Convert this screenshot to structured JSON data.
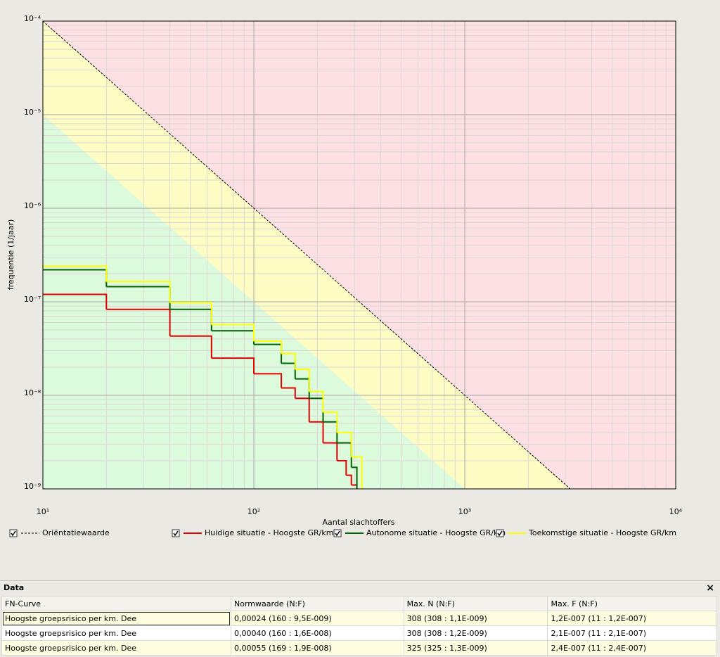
{
  "chart_data": {
    "type": "line",
    "log_x": true,
    "log_y": true,
    "grid": true,
    "xlabel": "Aantal slachtoffers",
    "ylabel": "frequentie (1/jaar)",
    "xlim": [
      10,
      10000
    ],
    "ylim": [
      1e-09,
      0.0001
    ],
    "xticks": [
      {
        "value": 10,
        "label": "10¹"
      },
      {
        "value": 100,
        "label": "10²"
      },
      {
        "value": 1000,
        "label": "10³"
      },
      {
        "value": 10000,
        "label": "10⁴"
      }
    ],
    "yticks": [
      {
        "value": 1e-09,
        "label": "10⁻⁹"
      },
      {
        "value": 1e-08,
        "label": "10⁻⁸"
      },
      {
        "value": 1e-07,
        "label": "10⁻⁷"
      },
      {
        "value": 1e-06,
        "label": "10⁻⁶"
      },
      {
        "value": 1e-05,
        "label": "10⁻⁵"
      },
      {
        "value": 0.0001,
        "label": "10⁻⁴"
      }
    ],
    "xminorticks": [
      20,
      30,
      40,
      50,
      60,
      70,
      80,
      90,
      200,
      300,
      400,
      500,
      600,
      700,
      800,
      900,
      2000,
      3000,
      4000,
      5000,
      6000,
      7000,
      8000,
      9000
    ],
    "yminorticks": [
      2e-09,
      3e-09,
      4e-09,
      5e-09,
      6e-09,
      7e-09,
      8e-09,
      9e-09,
      2e-08,
      3e-08,
      4e-08,
      5e-08,
      6e-08,
      7e-08,
      8e-08,
      9e-08,
      2e-07,
      3e-07,
      4e-07,
      5e-07,
      6e-07,
      7e-07,
      8e-07,
      9e-07,
      2e-06,
      3e-06,
      4e-06,
      5e-06,
      6e-06,
      7e-06,
      8e-06,
      9e-06,
      2e-05,
      3e-05,
      4e-05,
      5e-05,
      6e-05,
      7e-05,
      8e-05,
      9e-05
    ],
    "series": [
      {
        "name": "Oriëntatiewaarde",
        "color": "#000000",
        "style": "dashed",
        "x": [
          10,
          100,
          1000,
          3162
        ],
        "values": [
          0.0001,
          1e-06,
          1e-08,
          1e-09
        ]
      },
      {
        "name": "Huidige situatie - Hoogste GR/km",
        "color": "#e00000",
        "style": "step",
        "x": [
          10,
          20,
          40,
          63,
          100,
          135,
          157,
          183,
          213,
          248,
          274,
          290,
          308
        ],
        "values": [
          1.2e-07,
          8.3e-08,
          4.3e-08,
          2.5e-08,
          1.7e-08,
          1.2e-08,
          9.3e-09,
          5.2e-09,
          3.1e-09,
          2e-09,
          1.4e-09,
          1.1e-09,
          1.1e-09
        ]
      },
      {
        "name": "Autonome situatie - Hoogste GR/km",
        "color": "#006400",
        "style": "step",
        "x": [
          10,
          20,
          40,
          63,
          100,
          135,
          157,
          183,
          213,
          248,
          290,
          308
        ],
        "values": [
          2.2e-07,
          1.45e-07,
          8.3e-08,
          4.9e-08,
          3.5e-08,
          2.2e-08,
          1.5e-08,
          9.3e-09,
          5.2e-09,
          3.1e-09,
          1.7e-09,
          1.2e-09
        ]
      },
      {
        "name": "Toekomstige situatie - Hoogste GR/km",
        "color": "#ffff00",
        "style": "step",
        "x": [
          10,
          20,
          40,
          63,
          100,
          135,
          157,
          183,
          213,
          248,
          290,
          325
        ],
        "values": [
          2.4e-07,
          1.65e-07,
          9.8e-08,
          5.7e-08,
          3.8e-08,
          2.8e-08,
          1.9e-08,
          1.1e-08,
          6.6e-09,
          4e-09,
          2.2e-09,
          1.3e-09
        ]
      }
    ]
  },
  "data_panel": {
    "title": "Data",
    "close": "×",
    "columns": [
      "FN-Curve",
      "Normwaarde (N:F)",
      "Max. N  (N:F)",
      "Max. F  (N:F)"
    ],
    "rows": [
      [
        "Hoogste groepsrisico per km. Dee",
        "0,00024 (160 : 9,5E-009)",
        "308 (308 : 1,1E-009)",
        "1,2E-007 (11 : 1,2E-007)"
      ],
      [
        "Hoogste groepsrisico per km. Dee",
        "0,00040 (160 : 1,6E-008)",
        "308 (308 : 1,2E-009)",
        "2,1E-007 (11 : 2,1E-007)"
      ],
      [
        "Hoogste groepsrisico per km. Dee",
        "0,00055 (169 : 1,9E-008)",
        "325 (325 : 1,3E-009)",
        "2,4E-007 (11 : 2,4E-007)"
      ]
    ]
  }
}
